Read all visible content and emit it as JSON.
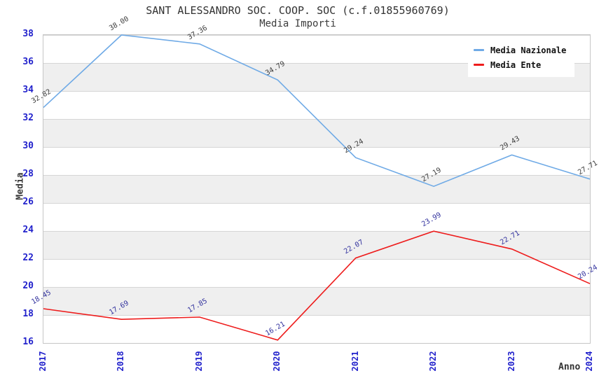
{
  "header": {
    "title": "SANT ALESSANDRO SOC. COOP. SOC (c.f.01855960769)",
    "subtitle": "Media Importi"
  },
  "legend": {
    "items": [
      {
        "label": "Media Nazionale",
        "color": "#6faae6"
      },
      {
        "label": "Media Ente",
        "color": "#ee1c1c"
      }
    ]
  },
  "chart_data": {
    "type": "line",
    "title": "SANT ALESSANDRO SOC. COOP. SOC (c.f.01855960769)",
    "subtitle": "Media Importi",
    "xlabel": "Anno",
    "ylabel": "Media",
    "x": [
      2017,
      2018,
      2019,
      2020,
      2021,
      2022,
      2023,
      2024
    ],
    "series": [
      {
        "name": "Media Nazionale",
        "color": "#6faae6",
        "annotation_color": "#3d3d3d",
        "values": [
          32.82,
          38.0,
          37.36,
          34.79,
          29.24,
          27.19,
          29.43,
          27.71
        ]
      },
      {
        "name": "Media Ente",
        "color": "#ee1c1c",
        "annotation_color": "#32329e",
        "values": [
          18.45,
          17.69,
          17.85,
          16.21,
          22.07,
          23.99,
          22.71,
          20.24
        ]
      }
    ],
    "ylim": [
      16,
      38
    ],
    "y_ticks": [
      16,
      18,
      20,
      22,
      24,
      26,
      28,
      30,
      32,
      34,
      36,
      38
    ],
    "value_decimals": 2,
    "grid": "horizontal-bands-alternating",
    "tick_color": "#2222cc",
    "legend_position": "top-right",
    "annotation_rotation_deg": -30
  }
}
